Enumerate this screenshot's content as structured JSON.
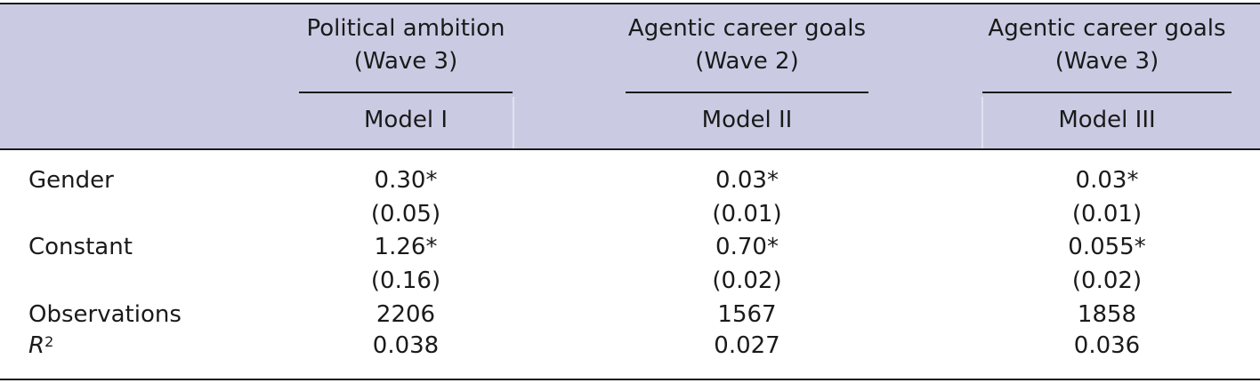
{
  "columns": [
    {
      "title": "Political ambition",
      "subtitle": "(Wave 3)",
      "model": "Model I"
    },
    {
      "title": "Agentic career goals",
      "subtitle": "(Wave 2)",
      "model": "Model II"
    },
    {
      "title": "Agentic career goals",
      "subtitle": "(Wave 3)",
      "model": "Model III"
    }
  ],
  "rows": {
    "gender": {
      "label": "Gender",
      "values": [
        "0.30*",
        "0.03*",
        "0.03*"
      ],
      "se": [
        "(0.05)",
        "(0.01)",
        "(0.01)"
      ]
    },
    "constant": {
      "label": "Constant",
      "values": [
        "1.26*",
        "0.70*",
        "0.055*"
      ],
      "se": [
        "(0.16)",
        "(0.02)",
        "(0.02)"
      ]
    },
    "observations": {
      "label": "Observations",
      "values": [
        "2206",
        "1567",
        "1858"
      ]
    },
    "r2": {
      "label_base": "R",
      "label_sup": "2",
      "values": [
        "0.038",
        "0.027",
        "0.036"
      ]
    }
  }
}
